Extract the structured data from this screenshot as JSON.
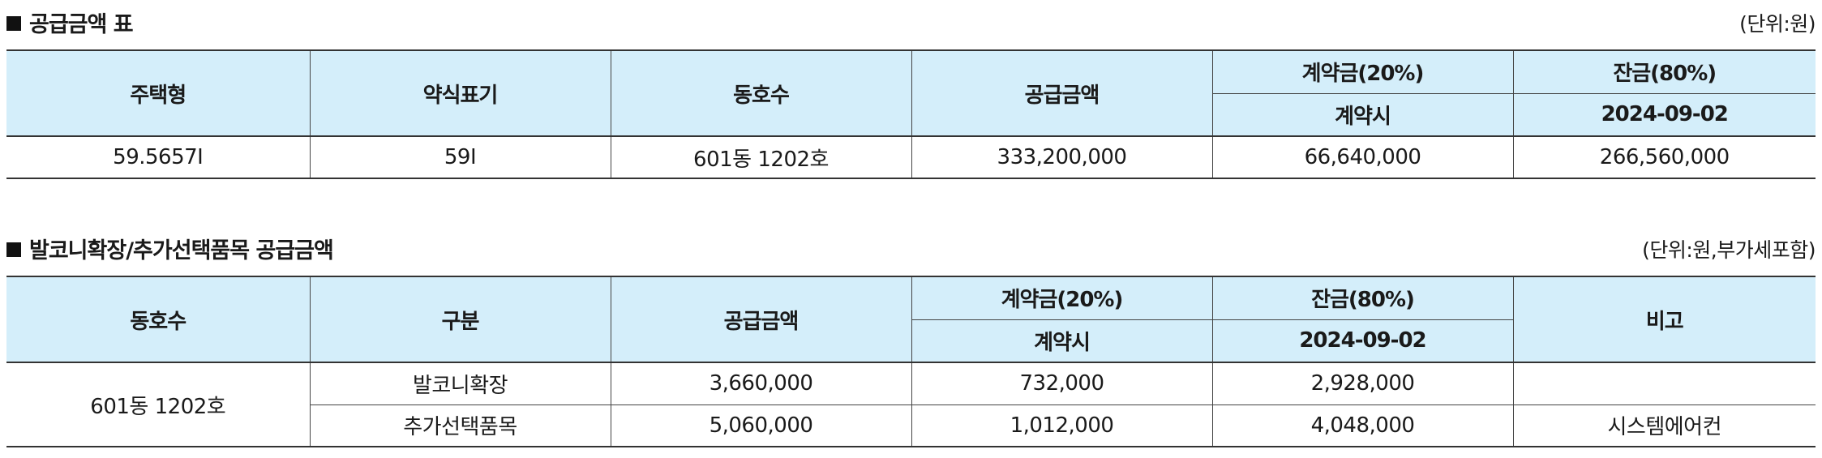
{
  "section1": {
    "title": "공급금액 표",
    "unit": "(단위:원)",
    "headers": {
      "house_type": "주택형",
      "short_label": "약식표기",
      "unit_no": "동호수",
      "supply_amount": "공급금액",
      "deposit": "계약금(20%)",
      "deposit_sub": "계약시",
      "balance": "잔금(80%)",
      "balance_sub": "2024-09-02"
    },
    "row": {
      "house_type": "59.5657I",
      "short_label": "59I",
      "unit_no": "601동 1202호",
      "supply_amount": "333,200,000",
      "deposit": "66,640,000",
      "balance": "266,560,000"
    }
  },
  "section2": {
    "title": "발코니확장/추가선택품목 공급금액",
    "unit": "(단위:원,부가세포함)",
    "headers": {
      "unit_no": "동호수",
      "category": "구분",
      "supply_amount": "공급금액",
      "deposit": "계약금(20%)",
      "deposit_sub": "계약시",
      "balance": "잔금(80%)",
      "balance_sub": "2024-09-02",
      "note": "비고"
    },
    "unit_no": "601동 1202호",
    "rows": [
      {
        "category": "발코니확장",
        "supply_amount": "3,660,000",
        "deposit": "732,000",
        "balance": "2,928,000",
        "note": ""
      },
      {
        "category": "추가선택품목",
        "supply_amount": "5,060,000",
        "deposit": "1,012,000",
        "balance": "4,048,000",
        "note": "시스템에어컨"
      }
    ]
  }
}
